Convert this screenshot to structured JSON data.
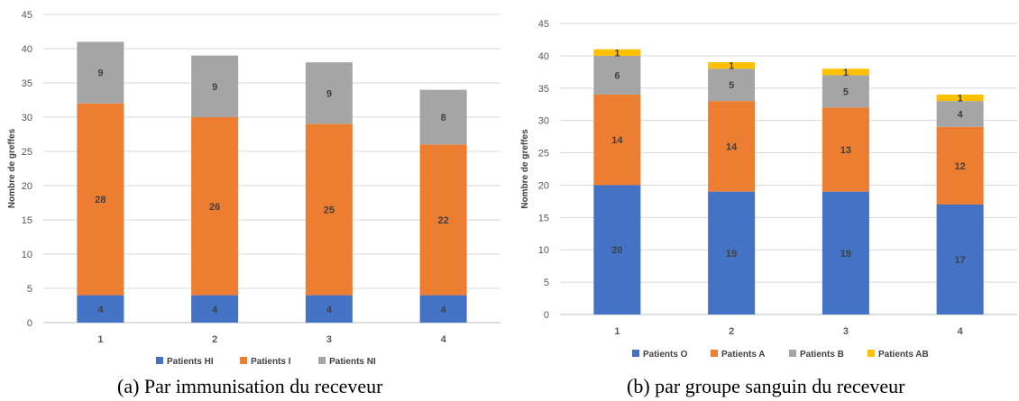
{
  "captions": {
    "a": "(a)  Par immunisation du receveur",
    "b": "(b) par groupe sanguin du receveur"
  },
  "chart_data": [
    {
      "type": "bar",
      "stacked": true,
      "title": "",
      "xlabel": "",
      "ylabel": "Nombre de greffes",
      "ylim": [
        0,
        45
      ],
      "yticks": [
        0,
        5,
        10,
        15,
        20,
        25,
        30,
        35,
        40,
        45
      ],
      "grid": true,
      "legend": "bottom",
      "categories": [
        "1",
        "2",
        "3",
        "4"
      ],
      "series": [
        {
          "name": "Patients HI",
          "color": "#4472c4",
          "values": [
            4,
            4,
            4,
            4
          ]
        },
        {
          "name": "Patients I",
          "color": "#ed7d31",
          "values": [
            28,
            26,
            25,
            22
          ]
        },
        {
          "name": "Patients NI",
          "color": "#a5a5a5",
          "values": [
            9,
            9,
            9,
            8
          ]
        }
      ]
    },
    {
      "type": "bar",
      "stacked": true,
      "title": "",
      "xlabel": "",
      "ylabel": "Nombre de greffes",
      "ylim": [
        0,
        45
      ],
      "yticks": [
        0,
        5,
        10,
        15,
        20,
        25,
        30,
        35,
        40,
        45
      ],
      "grid": true,
      "legend": "bottom",
      "categories": [
        "1",
        "2",
        "3",
        "4"
      ],
      "series": [
        {
          "name": "Patients O",
          "color": "#4472c4",
          "values": [
            20,
            19,
            19,
            17
          ]
        },
        {
          "name": "Patients A",
          "color": "#ed7d31",
          "values": [
            14,
            14,
            13,
            12
          ]
        },
        {
          "name": "Patients B",
          "color": "#a5a5a5",
          "values": [
            6,
            5,
            5,
            4
          ]
        },
        {
          "name": "Patients AB",
          "color": "#ffc000",
          "values": [
            1,
            1,
            1,
            1
          ]
        }
      ]
    }
  ]
}
